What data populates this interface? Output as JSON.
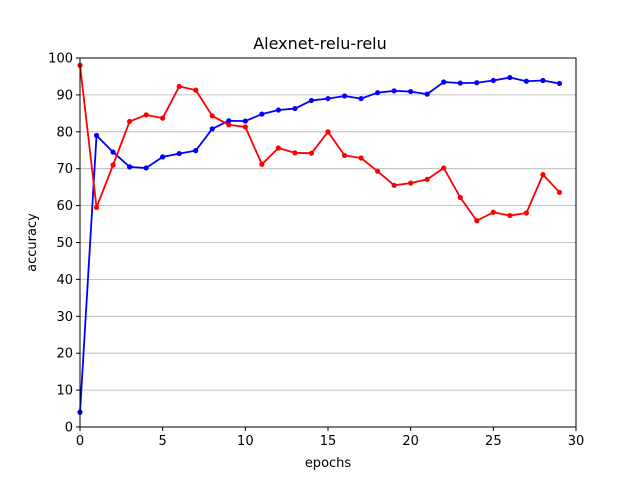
{
  "chart_data": {
    "type": "line",
    "title": "Alexnet-relu-relu",
    "xlabel": "epochs",
    "ylabel": "accuracy",
    "xlim": [
      0,
      30
    ],
    "ylim": [
      0,
      100
    ],
    "xticks": [
      0,
      5,
      10,
      15,
      20,
      25,
      30
    ],
    "yticks": [
      0,
      10,
      20,
      30,
      40,
      50,
      60,
      70,
      80,
      90,
      100
    ],
    "grid": "horizontal",
    "series": [
      {
        "color": "#0000ff",
        "x": [
          0,
          1,
          2,
          3,
          4,
          5,
          6,
          7,
          8,
          9,
          10,
          11,
          12,
          13,
          14,
          15,
          16,
          17,
          18,
          19,
          20,
          21,
          22,
          23,
          24,
          25,
          26,
          27,
          28,
          29
        ],
        "values": [
          4,
          79,
          74.5,
          70.5,
          70.2,
          73.2,
          74.1,
          74.9,
          80.8,
          83,
          82.9,
          84.8,
          85.9,
          86.3,
          88.5,
          89,
          89.7,
          89,
          90.6,
          91.1,
          90.9,
          90.2,
          93.5,
          93.2,
          93.3,
          93.9,
          94.7,
          93.7,
          93.9,
          93.1
        ]
      },
      {
        "color": "#ff0000",
        "x": [
          0,
          1,
          2,
          3,
          4,
          5,
          6,
          7,
          8,
          9,
          10,
          11,
          12,
          13,
          14,
          15,
          16,
          17,
          18,
          19,
          20,
          21,
          22,
          23,
          24,
          25,
          26,
          27,
          28,
          29
        ],
        "values": [
          98,
          59.5,
          71,
          82.8,
          84.6,
          83.7,
          92.3,
          91.3,
          84.3,
          81.9,
          81.3,
          71.2,
          75.6,
          74.3,
          74.2,
          80,
          73.6,
          72.9,
          69.3,
          65.5,
          66.1,
          67.1,
          70.2,
          62.2,
          55.9,
          58.2,
          57.3,
          58,
          68.4,
          63.6
        ]
      }
    ]
  }
}
